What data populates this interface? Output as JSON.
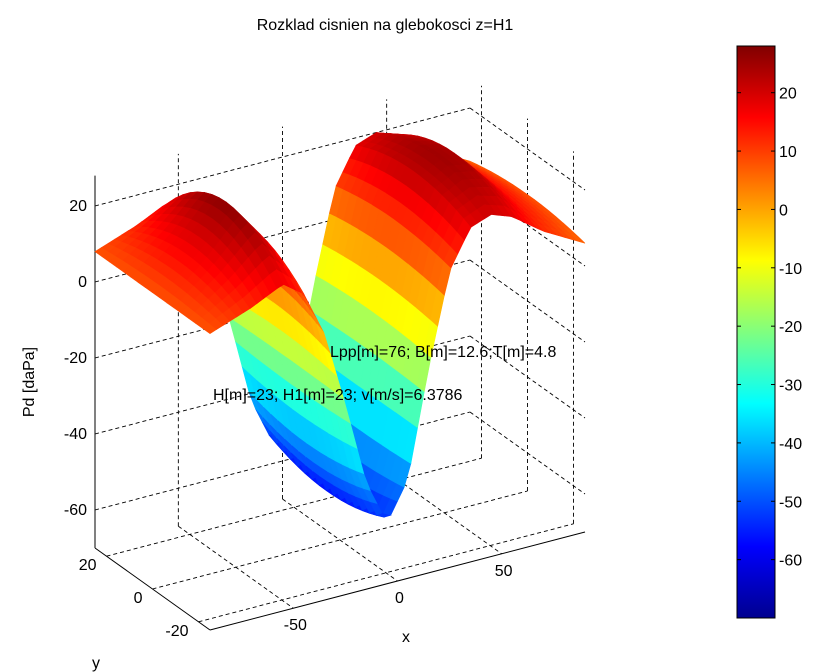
{
  "chart_data": {
    "type": "surface",
    "title": "Rozklad cisnien na glebokosci z=H1",
    "xlabel": "x",
    "ylabel": "y",
    "zlabel": "Pd [daPa]",
    "grid": true,
    "colormap": "jet",
    "xlim": [
      -90,
      90
    ],
    "ylim": [
      -25,
      25
    ],
    "zlim": [
      -70,
      30
    ],
    "x_ticks": [
      -50,
      0,
      50
    ],
    "y_ticks": [
      -20,
      0,
      20
    ],
    "z_ticks": [
      -60,
      -40,
      -20,
      0,
      20
    ],
    "colorbar": {
      "location": "right",
      "range": [
        -70,
        28
      ],
      "ticks": [
        -60,
        -50,
        -40,
        -30,
        -20,
        -10,
        0,
        10,
        20
      ]
    },
    "annotations": [
      "Lpp[m]=76; B[m]=12.6;T[m]=4.8",
      "H[m]=23; H1[m]=23; v[m/s]=6.3786"
    ],
    "surface_profile": {
      "x": [
        -90,
        -70,
        -55,
        -45,
        -35,
        -25,
        -15,
        -5,
        5,
        15,
        25,
        35,
        45,
        55,
        70,
        90
      ],
      "z_center": [
        8,
        18,
        27,
        20,
        4,
        -20,
        -45,
        -58,
        -45,
        -15,
        10,
        22,
        25,
        24,
        15,
        8
      ],
      "z_edge": [
        8,
        12,
        16,
        12,
        0,
        -20,
        -42,
        -54,
        -44,
        -16,
        8,
        18,
        20,
        18,
        12,
        6
      ]
    }
  }
}
